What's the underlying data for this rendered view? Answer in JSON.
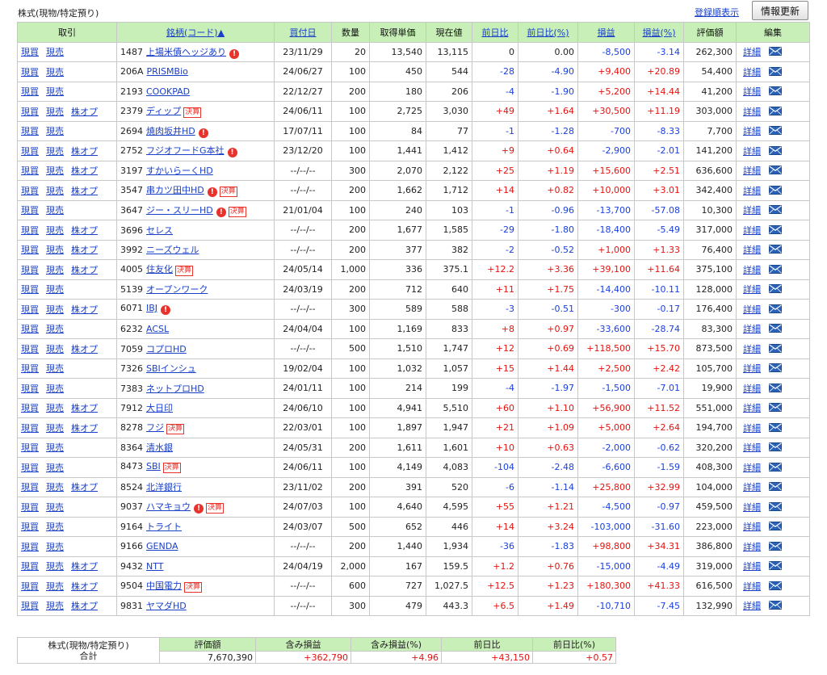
{
  "page": {
    "title": "株式(現物/特定預り)",
    "order_link": "登録順表示",
    "refresh_button": "情報更新"
  },
  "colors": {
    "header_bg": "#c8efb8",
    "link": "#1a40c8",
    "positive": "#e5120e",
    "negative": "#1a3fe0",
    "warning": "#e8322c"
  },
  "icons": {
    "warning": "warning-circle-icon",
    "mail": "mail-envelope-icon"
  },
  "table": {
    "headers": [
      "取引",
      "銘柄(コード)▲",
      "買付日",
      "数量",
      "取得単価",
      "現在値",
      "前日比",
      "前日比(%)",
      "損益",
      "損益(%)",
      "評価額",
      "編集"
    ],
    "rows": [
      {
        "trade": [
          "現買",
          "現売"
        ],
        "code": "1487",
        "name": "上場米債ヘッジあり",
        "warn": true,
        "kessan": false,
        "date": "23/11/29",
        "qty": "20",
        "cost": "13,540",
        "price": "13,115",
        "chg": "0",
        "chg_pct": "0.00",
        "pl": "-8,500",
        "pl_pct": "-3.14",
        "value": "262,300",
        "detail": "詳細"
      },
      {
        "trade": [
          "現買",
          "現売"
        ],
        "code": "206A",
        "name": "PRISMBio",
        "warn": false,
        "kessan": false,
        "date": "24/06/27",
        "qty": "100",
        "cost": "450",
        "price": "544",
        "chg": "-28",
        "chg_pct": "-4.90",
        "pl": "+9,400",
        "pl_pct": "+20.89",
        "value": "54,400",
        "detail": "詳細"
      },
      {
        "trade": [
          "現買",
          "現売"
        ],
        "code": "2193",
        "name": "COOKPAD",
        "warn": false,
        "kessan": false,
        "date": "22/12/27",
        "qty": "200",
        "cost": "180",
        "price": "206",
        "chg": "-4",
        "chg_pct": "-1.90",
        "pl": "+5,200",
        "pl_pct": "+14.44",
        "value": "41,200",
        "detail": "詳細"
      },
      {
        "trade": [
          "現買",
          "現売",
          "株オプ"
        ],
        "code": "2379",
        "name": "ディップ",
        "warn": false,
        "kessan": true,
        "date": "24/06/11",
        "qty": "100",
        "cost": "2,725",
        "price": "3,030",
        "chg": "+49",
        "chg_pct": "+1.64",
        "pl": "+30,500",
        "pl_pct": "+11.19",
        "value": "303,000",
        "detail": "詳細"
      },
      {
        "trade": [
          "現買",
          "現売"
        ],
        "code": "2694",
        "name": "焼肉坂井HD",
        "warn": true,
        "kessan": false,
        "date": "17/07/11",
        "qty": "100",
        "cost": "84",
        "price": "77",
        "chg": "-1",
        "chg_pct": "-1.28",
        "pl": "-700",
        "pl_pct": "-8.33",
        "value": "7,700",
        "detail": "詳細"
      },
      {
        "trade": [
          "現買",
          "現売",
          "株オプ"
        ],
        "code": "2752",
        "name": "フジオフードG本社",
        "warn": true,
        "kessan": false,
        "date": "23/12/20",
        "qty": "100",
        "cost": "1,441",
        "price": "1,412",
        "chg": "+9",
        "chg_pct": "+0.64",
        "pl": "-2,900",
        "pl_pct": "-2.01",
        "value": "141,200",
        "detail": "詳細"
      },
      {
        "trade": [
          "現買",
          "現売",
          "株オプ"
        ],
        "code": "3197",
        "name": "すかいらーくHD",
        "warn": false,
        "kessan": false,
        "date": "--/--/--",
        "qty": "300",
        "cost": "2,070",
        "price": "2,122",
        "chg": "+25",
        "chg_pct": "+1.19",
        "pl": "+15,600",
        "pl_pct": "+2.51",
        "value": "636,600",
        "detail": "詳細"
      },
      {
        "trade": [
          "現買",
          "現売",
          "株オプ"
        ],
        "code": "3547",
        "name": "串カツ田中HD",
        "warn": true,
        "kessan": true,
        "date": "--/--/--",
        "qty": "200",
        "cost": "1,662",
        "price": "1,712",
        "chg": "+14",
        "chg_pct": "+0.82",
        "pl": "+10,000",
        "pl_pct": "+3.01",
        "value": "342,400",
        "detail": "詳細"
      },
      {
        "trade": [
          "現買",
          "現売"
        ],
        "code": "3647",
        "name": "ジー・スリーHD",
        "warn": true,
        "kessan": true,
        "date": "21/01/04",
        "qty": "100",
        "cost": "240",
        "price": "103",
        "chg": "-1",
        "chg_pct": "-0.96",
        "pl": "-13,700",
        "pl_pct": "-57.08",
        "value": "10,300",
        "detail": "詳細"
      },
      {
        "trade": [
          "現買",
          "現売",
          "株オプ"
        ],
        "code": "3696",
        "name": "セレス",
        "warn": false,
        "kessan": false,
        "date": "--/--/--",
        "qty": "200",
        "cost": "1,677",
        "price": "1,585",
        "chg": "-29",
        "chg_pct": "-1.80",
        "pl": "-18,400",
        "pl_pct": "-5.49",
        "value": "317,000",
        "detail": "詳細"
      },
      {
        "trade": [
          "現買",
          "現売",
          "株オプ"
        ],
        "code": "3992",
        "name": "ニーズウェル",
        "warn": false,
        "kessan": false,
        "date": "--/--/--",
        "qty": "200",
        "cost": "377",
        "price": "382",
        "chg": "-2",
        "chg_pct": "-0.52",
        "pl": "+1,000",
        "pl_pct": "+1.33",
        "value": "76,400",
        "detail": "詳細"
      },
      {
        "trade": [
          "現買",
          "現売",
          "株オプ"
        ],
        "code": "4005",
        "name": "住友化",
        "warn": false,
        "kessan": true,
        "date": "24/05/14",
        "qty": "1,000",
        "cost": "336",
        "price": "375.1",
        "chg": "+12.2",
        "chg_pct": "+3.36",
        "pl": "+39,100",
        "pl_pct": "+11.64",
        "value": "375,100",
        "detail": "詳細"
      },
      {
        "trade": [
          "現買",
          "現売"
        ],
        "code": "5139",
        "name": "オープンワーク",
        "warn": false,
        "kessan": false,
        "date": "24/03/19",
        "qty": "200",
        "cost": "712",
        "price": "640",
        "chg": "+11",
        "chg_pct": "+1.75",
        "pl": "-14,400",
        "pl_pct": "-10.11",
        "value": "128,000",
        "detail": "詳細"
      },
      {
        "trade": [
          "現買",
          "現売",
          "株オプ"
        ],
        "code": "6071",
        "name": "IBJ",
        "warn": true,
        "kessan": false,
        "date": "--/--/--",
        "qty": "300",
        "cost": "589",
        "price": "588",
        "chg": "-3",
        "chg_pct": "-0.51",
        "pl": "-300",
        "pl_pct": "-0.17",
        "value": "176,400",
        "detail": "詳細"
      },
      {
        "trade": [
          "現買",
          "現売"
        ],
        "code": "6232",
        "name": "ACSL",
        "warn": false,
        "kessan": false,
        "date": "24/04/04",
        "qty": "100",
        "cost": "1,169",
        "price": "833",
        "chg": "+8",
        "chg_pct": "+0.97",
        "pl": "-33,600",
        "pl_pct": "-28.74",
        "value": "83,300",
        "detail": "詳細"
      },
      {
        "trade": [
          "現買",
          "現売",
          "株オプ"
        ],
        "code": "7059",
        "name": "コプロHD",
        "warn": false,
        "kessan": false,
        "date": "--/--/--",
        "qty": "500",
        "cost": "1,510",
        "price": "1,747",
        "chg": "+12",
        "chg_pct": "+0.69",
        "pl": "+118,500",
        "pl_pct": "+15.70",
        "value": "873,500",
        "detail": "詳細"
      },
      {
        "trade": [
          "現買",
          "現売"
        ],
        "code": "7326",
        "name": "SBIインシュ",
        "warn": false,
        "kessan": false,
        "date": "19/02/04",
        "qty": "100",
        "cost": "1,032",
        "price": "1,057",
        "chg": "+15",
        "chg_pct": "+1.44",
        "pl": "+2,500",
        "pl_pct": "+2.42",
        "value": "105,700",
        "detail": "詳細"
      },
      {
        "trade": [
          "現買",
          "現売"
        ],
        "code": "7383",
        "name": "ネットプロHD",
        "warn": false,
        "kessan": false,
        "date": "24/01/11",
        "qty": "100",
        "cost": "214",
        "price": "199",
        "chg": "-4",
        "chg_pct": "-1.97",
        "pl": "-1,500",
        "pl_pct": "-7.01",
        "value": "19,900",
        "detail": "詳細"
      },
      {
        "trade": [
          "現買",
          "現売",
          "株オプ"
        ],
        "code": "7912",
        "name": "大日印",
        "warn": false,
        "kessan": false,
        "date": "24/06/10",
        "qty": "100",
        "cost": "4,941",
        "price": "5,510",
        "chg": "+60",
        "chg_pct": "+1.10",
        "pl": "+56,900",
        "pl_pct": "+11.52",
        "value": "551,000",
        "detail": "詳細"
      },
      {
        "trade": [
          "現買",
          "現売",
          "株オプ"
        ],
        "code": "8278",
        "name": "フジ",
        "warn": false,
        "kessan": true,
        "date": "22/03/01",
        "qty": "100",
        "cost": "1,897",
        "price": "1,947",
        "chg": "+21",
        "chg_pct": "+1.09",
        "pl": "+5,000",
        "pl_pct": "+2.64",
        "value": "194,700",
        "detail": "詳細"
      },
      {
        "trade": [
          "現買",
          "現売"
        ],
        "code": "8364",
        "name": "清水銀",
        "warn": false,
        "kessan": false,
        "date": "24/05/31",
        "qty": "200",
        "cost": "1,611",
        "price": "1,601",
        "chg": "+10",
        "chg_pct": "+0.63",
        "pl": "-2,000",
        "pl_pct": "-0.62",
        "value": "320,200",
        "detail": "詳細"
      },
      {
        "trade": [
          "現買",
          "現売"
        ],
        "code": "8473",
        "name": "SBI",
        "warn": false,
        "kessan": true,
        "date": "24/06/11",
        "qty": "100",
        "cost": "4,149",
        "price": "4,083",
        "chg": "-104",
        "chg_pct": "-2.48",
        "pl": "-6,600",
        "pl_pct": "-1.59",
        "value": "408,300",
        "detail": "詳細"
      },
      {
        "trade": [
          "現買",
          "現売",
          "株オプ"
        ],
        "code": "8524",
        "name": "北洋銀行",
        "warn": false,
        "kessan": false,
        "date": "23/11/02",
        "qty": "200",
        "cost": "391",
        "price": "520",
        "chg": "-6",
        "chg_pct": "-1.14",
        "pl": "+25,800",
        "pl_pct": "+32.99",
        "value": "104,000",
        "detail": "詳細"
      },
      {
        "trade": [
          "現買",
          "現売"
        ],
        "code": "9037",
        "name": "ハマキョウ",
        "warn": true,
        "kessan": true,
        "date": "24/07/03",
        "qty": "100",
        "cost": "4,640",
        "price": "4,595",
        "chg": "+55",
        "chg_pct": "+1.21",
        "pl": "-4,500",
        "pl_pct": "-0.97",
        "value": "459,500",
        "detail": "詳細"
      },
      {
        "trade": [
          "現買",
          "現売"
        ],
        "code": "9164",
        "name": "トライト",
        "warn": false,
        "kessan": false,
        "date": "24/03/07",
        "qty": "500",
        "cost": "652",
        "price": "446",
        "chg": "+14",
        "chg_pct": "+3.24",
        "pl": "-103,000",
        "pl_pct": "-31.60",
        "value": "223,000",
        "detail": "詳細"
      },
      {
        "trade": [
          "現買",
          "現売"
        ],
        "code": "9166",
        "name": "GENDA",
        "warn": false,
        "kessan": false,
        "date": "--/--/--",
        "qty": "200",
        "cost": "1,440",
        "price": "1,934",
        "chg": "-36",
        "chg_pct": "-1.83",
        "pl": "+98,800",
        "pl_pct": "+34.31",
        "value": "386,800",
        "detail": "詳細"
      },
      {
        "trade": [
          "現買",
          "現売",
          "株オプ"
        ],
        "code": "9432",
        "name": "NTT",
        "warn": false,
        "kessan": false,
        "date": "24/04/19",
        "qty": "2,000",
        "cost": "167",
        "price": "159.5",
        "chg": "+1.2",
        "chg_pct": "+0.76",
        "pl": "-15,000",
        "pl_pct": "-4.49",
        "value": "319,000",
        "detail": "詳細"
      },
      {
        "trade": [
          "現買",
          "現売",
          "株オプ"
        ],
        "code": "9504",
        "name": "中国電力",
        "warn": false,
        "kessan": true,
        "date": "--/--/--",
        "qty": "600",
        "cost": "727",
        "price": "1,027.5",
        "chg": "+12.5",
        "chg_pct": "+1.23",
        "pl": "+180,300",
        "pl_pct": "+41.33",
        "value": "616,500",
        "detail": "詳細"
      },
      {
        "trade": [
          "現買",
          "現売",
          "株オプ"
        ],
        "code": "9831",
        "name": "ヤマダHD",
        "warn": false,
        "kessan": false,
        "date": "--/--/--",
        "qty": "300",
        "cost": "479",
        "price": "443.3",
        "chg": "+6.5",
        "chg_pct": "+1.49",
        "pl": "-10,710",
        "pl_pct": "-7.45",
        "value": "132,990",
        "detail": "詳細"
      }
    ]
  },
  "badges": {
    "kessan": "決算",
    "warn_glyph": "!"
  },
  "summary": {
    "label_line1": "株式(現物/特定預り)",
    "label_line2": "合計",
    "headers": [
      "評価額",
      "含み損益",
      "含み損益(%)",
      "前日比",
      "前日比(%)"
    ],
    "values": [
      "7,670,390",
      "+362,790",
      "+4.96",
      "+43,150",
      "+0.57"
    ]
  }
}
